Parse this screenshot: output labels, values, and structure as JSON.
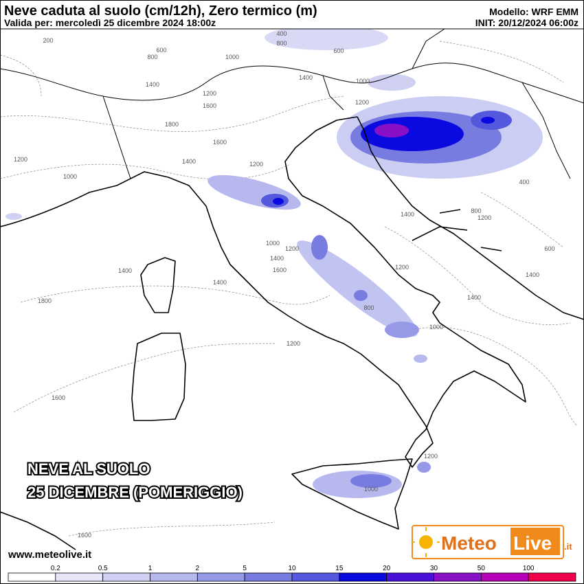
{
  "header": {
    "title": "Neve caduta al suolo (cm/12h), Zero termico (m)",
    "valid": "Valida per: mercoledì 25 dicembre 2024 18:00z",
    "model": "Modello: WRF EMM",
    "init": "INIT: 20/12/2024 06:00z"
  },
  "overlay": {
    "line1": "NEVE AL SUOLO",
    "line2": "25 DICEMBRE (POMERIGGIO)"
  },
  "footer": {
    "url": "www.meteolive.it",
    "logo": {
      "part1": "Meteo",
      "part2": "Live",
      "part3": ".it"
    }
  },
  "colorbar": {
    "labels": [
      "0.2",
      "0.5",
      "1",
      "2",
      "5",
      "10",
      "15",
      "20",
      "30",
      "50",
      "100"
    ],
    "colors": [
      "#ffffff",
      "#e6e6f8",
      "#cfd0f2",
      "#b6b8ee",
      "#9699e6",
      "#787ce0",
      "#5458dc",
      "#0a0ae0",
      "#4a10d8",
      "#8a10c8",
      "#b800b8",
      "#f0004a"
    ]
  },
  "contour_labels": [
    "200",
    "400",
    "800",
    "600",
    "800",
    "1000",
    "1400",
    "1400",
    "1200",
    "1600",
    "1800",
    "1600",
    "1200",
    "1400",
    "1000",
    "1200",
    "1000",
    "1200",
    "1400",
    "1600",
    "1400",
    "1400",
    "1800",
    "1400",
    "1200",
    "800",
    "1000",
    "1200",
    "1600",
    "1200",
    "1000",
    "1600",
    "400",
    "600",
    "800",
    "1200",
    "1400",
    "600",
    "1400",
    "1000",
    "1200"
  ]
}
